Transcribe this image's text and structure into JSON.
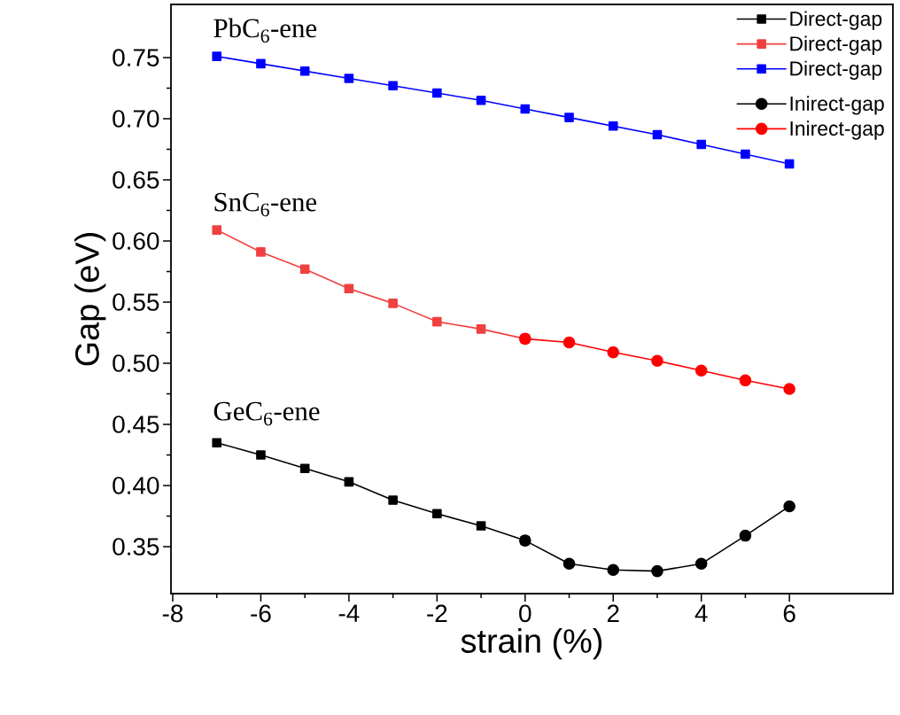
{
  "chart_data": {
    "type": "line",
    "xlabel": "strain (%)",
    "ylabel": "Gap (eV)",
    "x": [
      -7,
      -6,
      -5,
      -4,
      -3,
      -2,
      -1,
      0,
      1,
      2,
      3,
      4,
      5,
      6
    ],
    "series": [
      {
        "name": "Direct-gap",
        "color": "#000000",
        "marker": "square",
        "x": [
          -7,
          -6,
          -5,
          -4,
          -3,
          -2,
          -1,
          0
        ],
        "values": [
          0.435,
          0.425,
          0.414,
          0.403,
          0.388,
          0.377,
          0.367,
          0.355
        ]
      },
      {
        "name": "Direct-gap",
        "color": "#f04040",
        "marker": "square",
        "x": [
          -7,
          -6,
          -5,
          -4,
          -3,
          -2,
          -1,
          0
        ],
        "values": [
          0.609,
          0.591,
          0.577,
          0.561,
          0.549,
          0.534,
          0.528,
          0.52
        ]
      },
      {
        "name": "Direct-gap",
        "color": "#0000ff",
        "marker": "square",
        "values": [
          0.751,
          0.745,
          0.739,
          0.733,
          0.727,
          0.721,
          0.715,
          0.708,
          0.701,
          0.694,
          0.687,
          0.679,
          0.671,
          0.663
        ]
      },
      {
        "name": "Inirect-gap",
        "color": "#000000",
        "marker": "circle",
        "x": [
          0,
          1,
          2,
          3,
          4,
          5,
          6
        ],
        "values": [
          0.355,
          0.336,
          0.331,
          0.33,
          0.336,
          0.359,
          0.383
        ]
      },
      {
        "name": "Inirect-gap",
        "color": "#ff0000",
        "marker": "circle",
        "x": [
          0,
          1,
          2,
          3,
          4,
          5,
          6
        ],
        "values": [
          0.52,
          0.517,
          0.509,
          0.502,
          0.494,
          0.486,
          0.479
        ]
      }
    ],
    "annotations": [
      "PbC$_{6}$-ene",
      "SnC$_{6}$-ene",
      "GeC$_{6}$-ene"
    ],
    "xlim": [
      -8.04,
      8.35
    ],
    "ylim": [
      0.3116,
      0.7935
    ],
    "xticks": [
      -8,
      -6,
      -4,
      -2,
      0,
      2,
      4,
      6
    ],
    "yticks": [
      0.35,
      {
        "value": 0.4,
        "label": "0.40"
      },
      0.45,
      {
        "value": 0.5,
        "label": "0.50"
      },
      0.55,
      {
        "value": 0.6,
        "label": "0.60"
      },
      0.65,
      {
        "value": 0.7,
        "label": "0.70"
      },
      0.75
    ],
    "grid": false,
    "legend": "top right",
    "line_style": "solid"
  }
}
